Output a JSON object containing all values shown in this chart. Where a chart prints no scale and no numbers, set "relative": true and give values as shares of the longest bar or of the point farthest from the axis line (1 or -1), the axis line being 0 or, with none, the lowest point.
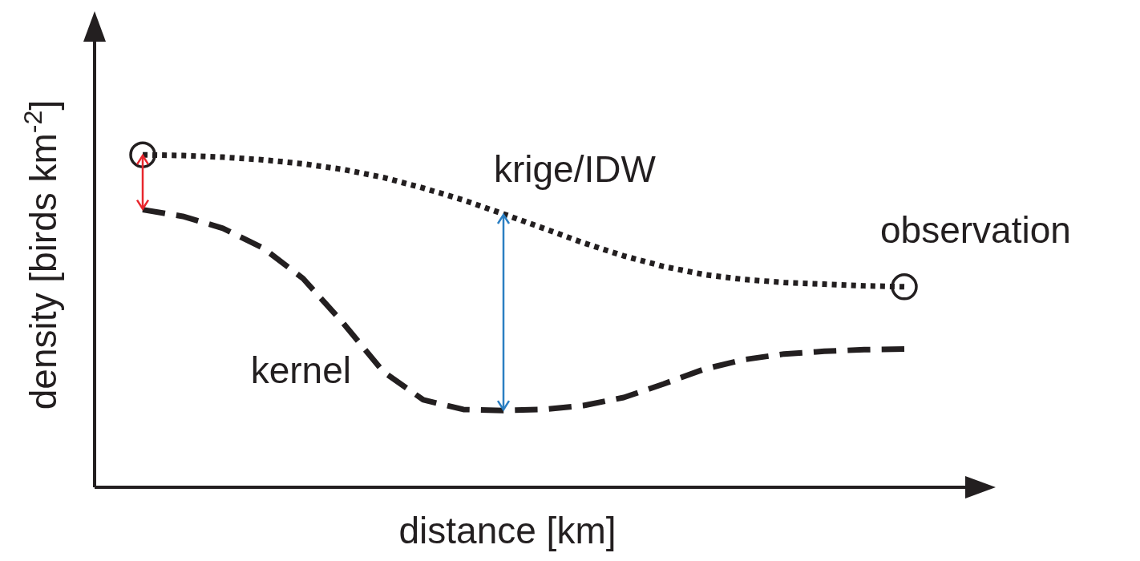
{
  "chart_data": {
    "type": "line",
    "relative": true,
    "xlabel": "distance [km]",
    "ylabel": "density [birds km$^{-2}$]",
    "categories": [
      null,
      null,
      null,
      null,
      null,
      null,
      null,
      null,
      null,
      null,
      null,
      null,
      null,
      null,
      null,
      null,
      null,
      null,
      null,
      null
    ],
    "series": [
      {
        "name": "krige/IDW",
        "color": "#231f20",
        "line_style": "dotted",
        "values": [
          1,
          0.998,
          0.993,
          0.985,
          0.973,
          0.956,
          0.932,
          0.9,
          0.864,
          0.822,
          0.779,
          0.735,
          0.696,
          0.664,
          0.64,
          0.625,
          0.616,
          0.611,
          0.606,
          0.603
        ]
      },
      {
        "name": "kernel",
        "color": "#231f20",
        "line_style": "dashed",
        "values": [
          0.835,
          0.815,
          0.779,
          0.72,
          0.628,
          0.494,
          0.348,
          0.263,
          0.234,
          0.231,
          0.234,
          0.246,
          0.27,
          0.311,
          0.355,
          0.384,
          0.401,
          0.409,
          0.414,
          0.416
        ]
      }
    ],
    "annotations": [
      "observation"
    ]
  }
}
